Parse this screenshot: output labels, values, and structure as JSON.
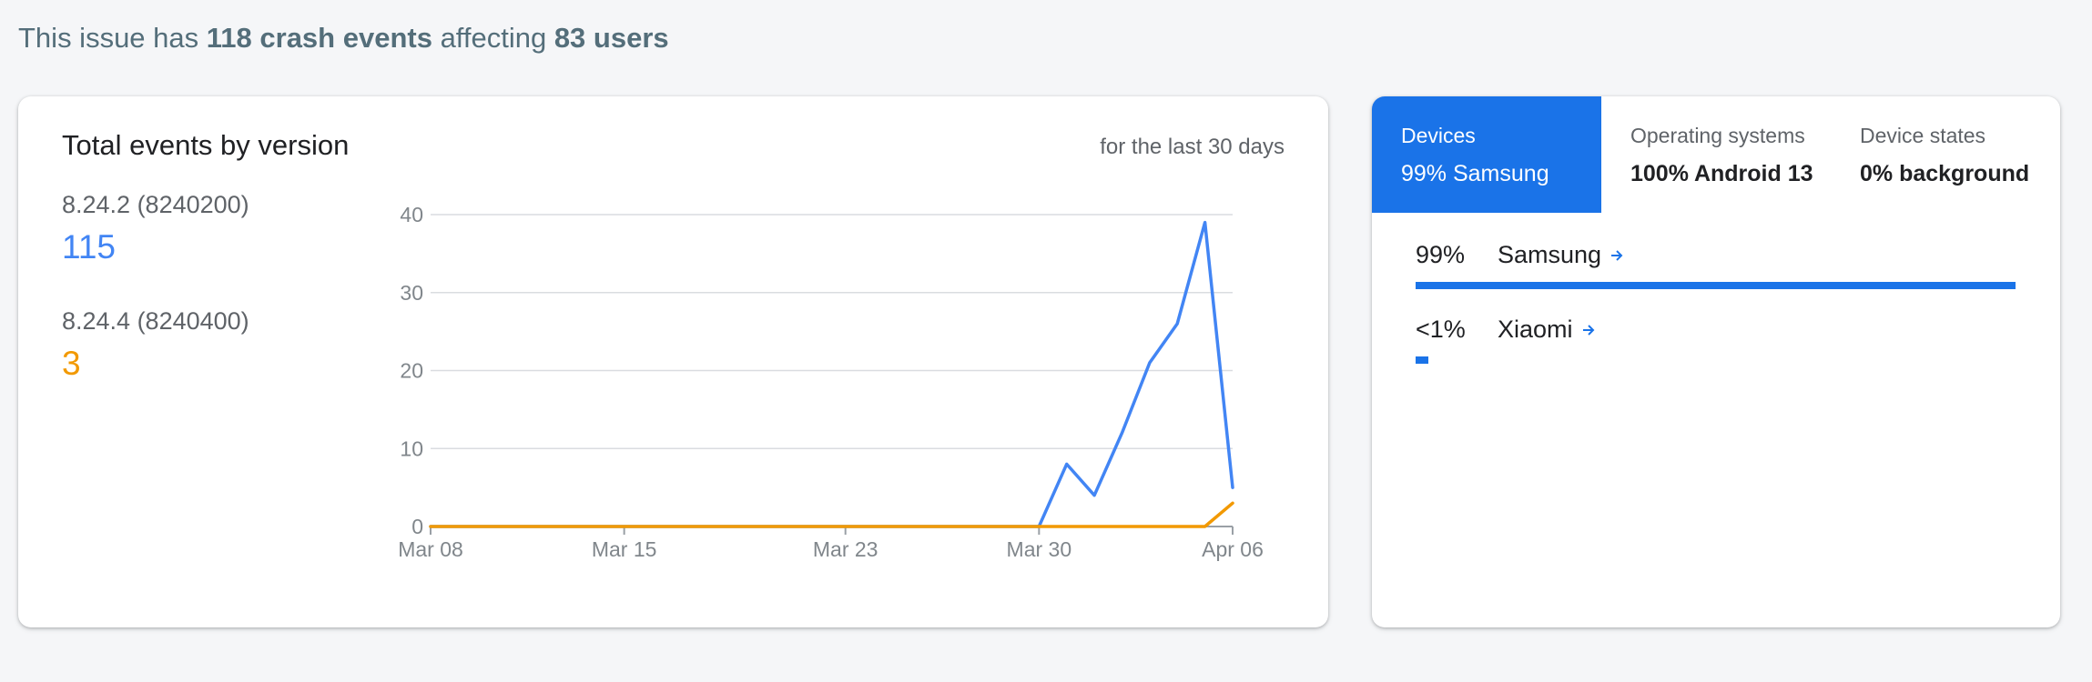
{
  "summary": {
    "prefix": "This issue has ",
    "events": "118 crash events",
    "middle": " affecting ",
    "users": "83 users"
  },
  "events_card": {
    "title": "Total events by version",
    "range": "for the last 30 days",
    "versions": [
      {
        "name": "8.24.2 (8240200)",
        "count": "115",
        "color": "#4285f4"
      },
      {
        "name": "8.24.4 (8240400)",
        "count": "3",
        "color": "#f29900"
      }
    ]
  },
  "chart_data": {
    "type": "line",
    "x_ticks": [
      "Mar 08",
      "Mar 15",
      "Mar 23",
      "Mar 30",
      "Apr 06"
    ],
    "y_ticks": [
      "0",
      "10",
      "20",
      "30",
      "40"
    ],
    "ylim": [
      0,
      40
    ],
    "xlim": [
      "Mar 08",
      "Apr 06"
    ],
    "grid": true,
    "series": [
      {
        "name": "8.24.2 (8240200)",
        "color": "#4285f4",
        "points": [
          [
            "Mar 08",
            0
          ],
          [
            "Mar 30",
            0
          ],
          [
            "Mar 31",
            8
          ],
          [
            "Apr 01",
            4
          ],
          [
            "Apr 02",
            12
          ],
          [
            "Apr 03",
            21
          ],
          [
            "Apr 04",
            26
          ],
          [
            "Apr 05",
            39
          ],
          [
            "Apr 06",
            5
          ]
        ]
      },
      {
        "name": "8.24.4 (8240400)",
        "color": "#f29900",
        "points": [
          [
            "Mar 08",
            0
          ],
          [
            "Apr 05",
            0
          ],
          [
            "Apr 06",
            3
          ]
        ]
      }
    ]
  },
  "breakdown": {
    "tabs": [
      {
        "label": "Devices",
        "value": "99% Samsung"
      },
      {
        "label": "Operating systems",
        "value": "100% Android 13"
      },
      {
        "label": "Device states",
        "value": "0% background"
      }
    ],
    "rows": [
      {
        "pct": "99%",
        "name": "Samsung",
        "share": 0.99
      },
      {
        "pct": "<1%",
        "name": "Xiaomi",
        "share": 0.01
      }
    ],
    "accent": "#1a73e8",
    "arrow_icon": "arrow-right-icon"
  }
}
